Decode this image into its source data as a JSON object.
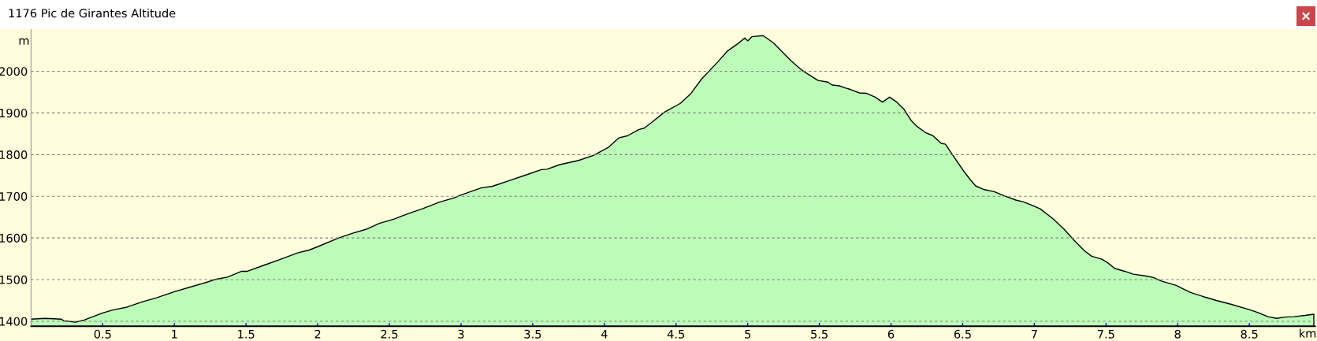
{
  "chart_data": {
    "type": "area",
    "title": "1176 Pic de Girantes Altitude",
    "xlabel": "km",
    "ylabel": "m",
    "x": [
      0,
      0.1,
      0.21,
      0.23,
      0.31,
      0.37,
      0.5,
      0.57,
      0.67,
      0.77,
      0.88,
      1.0,
      1.12,
      1.22,
      1.28,
      1.37,
      1.47,
      1.51,
      1.63,
      1.75,
      1.86,
      1.94,
      2.0,
      2.14,
      2.24,
      2.34,
      2.43,
      2.53,
      2.63,
      2.73,
      2.85,
      2.95,
      3.0,
      3.14,
      3.22,
      3.34,
      3.46,
      3.56,
      3.6,
      3.69,
      3.82,
      3.93,
      4.03,
      4.1,
      4.16,
      4.24,
      4.28,
      4.34,
      4.42,
      4.53,
      4.6,
      4.68,
      4.79,
      4.86,
      4.93,
      4.98,
      5.0,
      5.03,
      5.09,
      5.11,
      5.18,
      5.3,
      5.38,
      5.49,
      5.56,
      5.59,
      5.64,
      5.68,
      5.72,
      5.78,
      5.83,
      5.89,
      5.94,
      5.99,
      6.04,
      6.09,
      6.14,
      6.18,
      6.24,
      6.29,
      6.35,
      6.38,
      6.43,
      6.51,
      6.55,
      6.59,
      6.65,
      6.72,
      6.79,
      6.87,
      6.92,
      6.98,
      7.04,
      7.13,
      7.21,
      7.27,
      7.35,
      7.4,
      7.47,
      7.51,
      7.56,
      7.63,
      7.69,
      7.77,
      7.83,
      7.89,
      7.99,
      8.03,
      8.09,
      8.19,
      8.27,
      8.37,
      8.49,
      8.56,
      8.63,
      8.69,
      8.75,
      8.81,
      8.89,
      8.95
    ],
    "series": [
      {
        "color": "#bcfcb8",
        "values": [
          1405,
          1407,
          1405,
          1401,
          1398,
          1403,
          1420,
          1427,
          1434,
          1446,
          1457,
          1471,
          1483,
          1493,
          1500,
          1506,
          1520,
          1520,
          1535,
          1550,
          1564,
          1571,
          1579,
          1599,
          1611,
          1621,
          1635,
          1645,
          1658,
          1670,
          1686,
          1696,
          1703,
          1720,
          1724,
          1738,
          1752,
          1764,
          1765,
          1776,
          1786,
          1799,
          1818,
          1840,
          1845,
          1860,
          1864,
          1880,
          1902,
          1923,
          1945,
          1982,
          2022,
          2049,
          2066,
          2080,
          2073,
          2083,
          2085,
          2085,
          2068,
          2026,
          2002,
          1978,
          1974,
          1967,
          1965,
          1960,
          1956,
          1948,
          1947,
          1938,
          1926,
          1938,
          1926,
          1909,
          1882,
          1868,
          1853,
          1846,
          1827,
          1825,
          1799,
          1759,
          1741,
          1725,
          1716,
          1711,
          1701,
          1691,
          1687,
          1679,
          1670,
          1646,
          1620,
          1597,
          1569,
          1556,
          1549,
          1541,
          1527,
          1520,
          1513,
          1509,
          1505,
          1496,
          1486,
          1479,
          1469,
          1458,
          1450,
          1441,
          1429,
          1421,
          1411,
          1407,
          1410,
          1411,
          1414,
          1417
        ]
      }
    ],
    "xlim": [
      0,
      8.96
    ],
    "xticks": [
      0.5,
      1,
      1.5,
      2,
      2.5,
      3,
      3.5,
      4,
      4.5,
      5,
      5.5,
      6,
      6.5,
      7,
      7.5,
      8,
      8.5
    ],
    "ylim": [
      1388,
      2100
    ],
    "yticks": [
      1400,
      1500,
      1600,
      1700,
      1800,
      1900,
      2000
    ],
    "grid": "y"
  }
}
